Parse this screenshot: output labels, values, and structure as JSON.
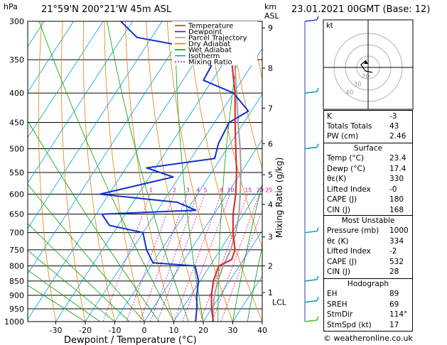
{
  "header": {
    "location": "21°59'N  200°21'W  45m  ASL",
    "datetime": "23.01.2021  00GMT  (Base: 12)",
    "hpa_unit": "hPa",
    "km_unit": "km",
    "asl_unit": "ASL"
  },
  "chart_data": {
    "type": "line",
    "xlabel": "Dewpoint / Temperature (°C)",
    "ylabel": "Mixing Ratio (g/kg)",
    "x_ticks": [
      "-30",
      "-20",
      "-10",
      "0",
      "10",
      "20",
      "30",
      "40"
    ],
    "pressure_ticks": [
      "300",
      "350",
      "400",
      "450",
      "500",
      "550",
      "600",
      "650",
      "700",
      "750",
      "800",
      "850",
      "900",
      "950",
      "1000"
    ],
    "km_ticks": [
      {
        "label": "9",
        "p": 308
      },
      {
        "label": "8",
        "p": 362
      },
      {
        "label": "7",
        "p": 425
      },
      {
        "label": "6",
        "p": 490
      },
      {
        "label": "5",
        "p": 555
      },
      {
        "label": "4",
        "p": 625
      },
      {
        "label": "3",
        "p": 712
      },
      {
        "label": "2",
        "p": 800
      },
      {
        "label": "1",
        "p": 890
      }
    ],
    "lcl_label": "LCL",
    "mixing_ratio_labels": [
      "1",
      "2",
      "3",
      "4",
      "5",
      "8",
      "10",
      "15",
      "20",
      "25"
    ],
    "legend": [
      "Temperature",
      "Dewpoint",
      "Parcel Trajectory",
      "Dry Adiabat",
      "Wet Adiabat",
      "Isotherm",
      "Mixing Ratio"
    ],
    "legend_colors": [
      "#e02020",
      "#1030d0",
      "#a0a0a0",
      "#e08000",
      "#00a000",
      "#00a0e0",
      "#d000a0"
    ],
    "temperature": [
      [
        1000,
        23.4
      ],
      [
        950,
        20.0
      ],
      [
        900,
        17.0
      ],
      [
        850,
        14.5
      ],
      [
        800,
        13.0
      ],
      [
        780,
        16.0
      ],
      [
        750,
        15.0
      ],
      [
        700,
        10.5
      ],
      [
        650,
        6.5
      ],
      [
        600,
        3.0
      ],
      [
        550,
        -1.5
      ],
      [
        500,
        -7.0
      ],
      [
        450,
        -13.0
      ],
      [
        400,
        -19.5
      ],
      [
        350,
        -28.0
      ],
      [
        330,
        -33.0
      ],
      [
        300,
        -36.0
      ]
    ],
    "dewpoint": [
      [
        1000,
        17.4
      ],
      [
        950,
        15.0
      ],
      [
        900,
        12.0
      ],
      [
        850,
        9.5
      ],
      [
        800,
        5.0
      ],
      [
        790,
        -10.0
      ],
      [
        750,
        -15.0
      ],
      [
        700,
        -20.0
      ],
      [
        680,
        -33.0
      ],
      [
        650,
        -38.0
      ],
      [
        640,
        -7.0
      ],
      [
        620,
        -15.0
      ],
      [
        600,
        -43.0
      ],
      [
        560,
        -22.0
      ],
      [
        540,
        -33.0
      ],
      [
        520,
        -12.0
      ],
      [
        490,
        -14.0
      ],
      [
        450,
        -15.0
      ],
      [
        430,
        -11.0
      ],
      [
        400,
        -20.0
      ],
      [
        380,
        -33.0
      ],
      [
        340,
        -34.0
      ],
      [
        320,
        -65.0
      ],
      [
        300,
        -74.0
      ]
    ],
    "parcel": [
      [
        1000,
        23.4
      ],
      [
        950,
        20.5
      ],
      [
        900,
        18.0
      ],
      [
        850,
        16.0
      ],
      [
        800,
        14.5
      ],
      [
        750,
        13.5
      ],
      [
        700,
        11.5
      ],
      [
        650,
        8.5
      ],
      [
        600,
        4.5
      ],
      [
        550,
        0.0
      ],
      [
        500,
        -5.5
      ],
      [
        450,
        -12.0
      ],
      [
        400,
        -19.0
      ],
      [
        350,
        -27.0
      ],
      [
        310,
        -34.0
      ]
    ],
    "wind_barbs": [
      {
        "p": 300,
        "color": "#2040d0"
      },
      {
        "p": 400,
        "color": "#00a0a0"
      },
      {
        "p": 500,
        "color": "#00a0a0"
      },
      {
        "p": 700,
        "color": "#00a0a0"
      },
      {
        "p": 850,
        "color": "#00a0a0"
      },
      {
        "p": 925,
        "color": "#00a0a0"
      },
      {
        "p": 1000,
        "color": "#40c020"
      }
    ]
  },
  "hodograph": {
    "unit_label": "kt",
    "ring_labels": [
      "20",
      "30",
      "40"
    ]
  },
  "indices": {
    "K": "-3",
    "Totals Totals": "43",
    "PW (cm)": "2.46"
  },
  "surface": {
    "title": "Surface",
    "rows": [
      {
        "k": "Temp (°C)",
        "v": "23.4"
      },
      {
        "k": "Dewp (°C)",
        "v": "17.4"
      },
      {
        "k": "θε(K)",
        "v": "330"
      },
      {
        "k": "Lifted Index",
        "v": "-0"
      },
      {
        "k": "CAPE (J)",
        "v": "180"
      },
      {
        "k": "CIN (J)",
        "v": "168"
      }
    ]
  },
  "most_unstable": {
    "title": "Most Unstable",
    "rows": [
      {
        "k": "Pressure (mb)",
        "v": "1000"
      },
      {
        "k": "θε (K)",
        "v": "334"
      },
      {
        "k": "Lifted Index",
        "v": "-2"
      },
      {
        "k": "CAPE (J)",
        "v": "532"
      },
      {
        "k": "CIN (J)",
        "v": "28"
      }
    ]
  },
  "hodo_table": {
    "title": "Hodograph",
    "rows": [
      {
        "k": "EH",
        "v": "89"
      },
      {
        "k": "SREH",
        "v": "69"
      },
      {
        "k": "StmDir",
        "v": "114°"
      },
      {
        "k": "StmSpd (kt)",
        "v": "17"
      }
    ]
  },
  "credit": "© weatheronline.co.uk"
}
